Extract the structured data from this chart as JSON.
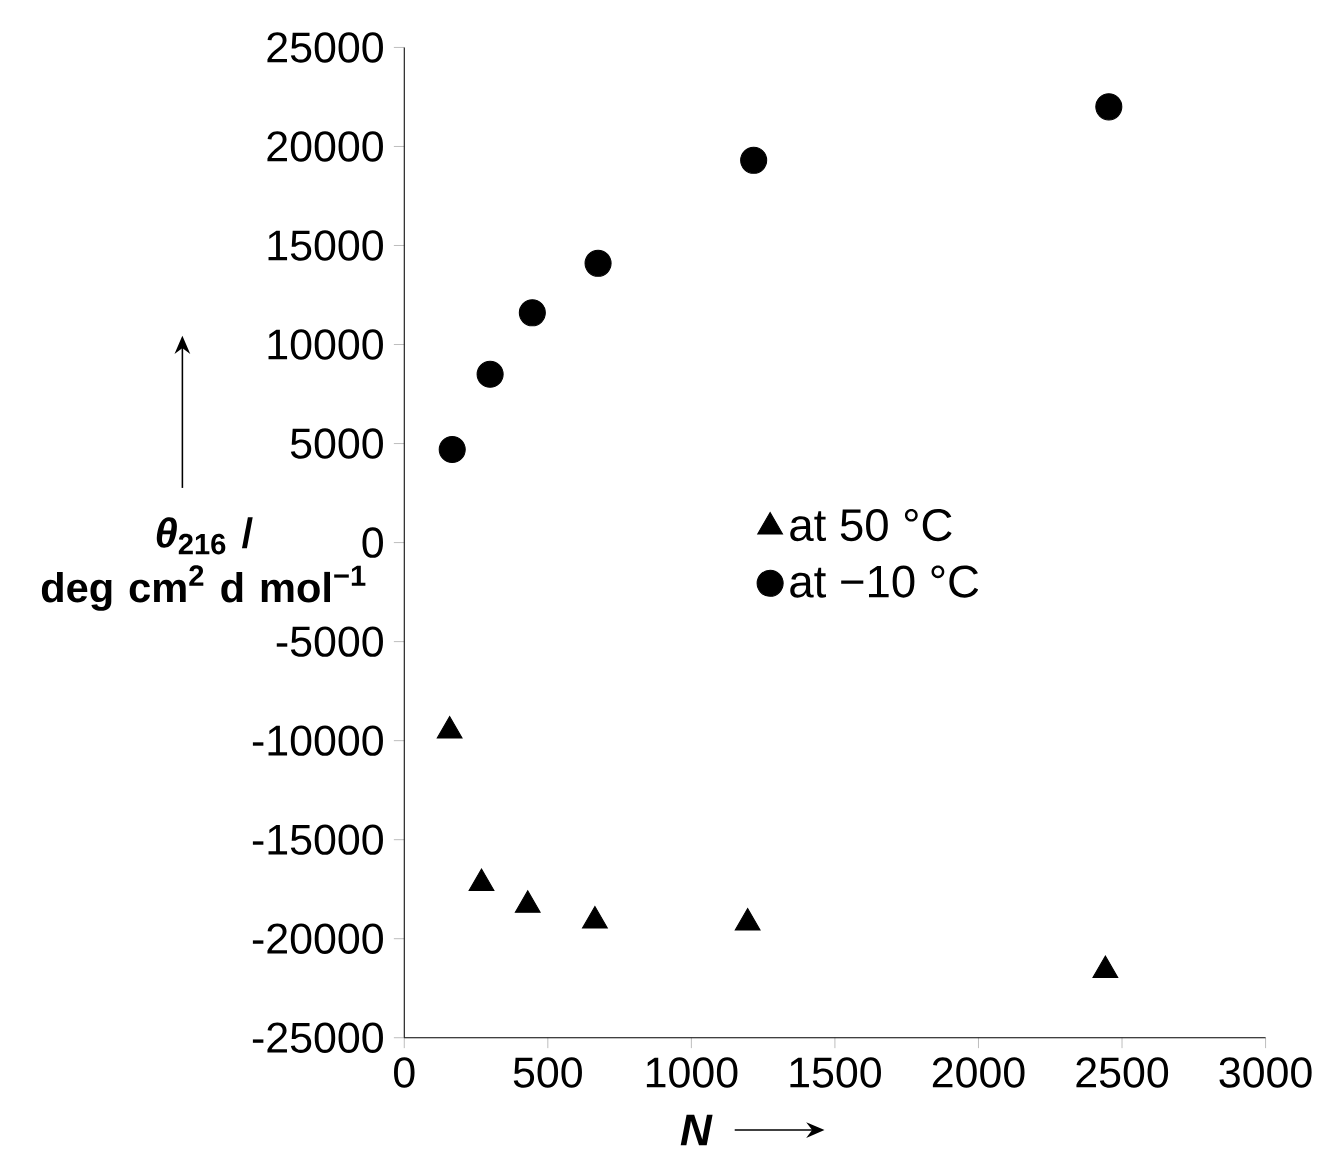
{
  "chart_data": {
    "type": "scatter",
    "xlabel": "N",
    "ylabel": "*θ*$_{216}$ / deg cm$^{2}$ d mol$^{−1}$",
    "xlim": [
      0,
      3000
    ],
    "xticks": [
      0,
      500,
      1000,
      1500,
      2000,
      2500,
      3000
    ],
    "ylim": [
      -25000,
      25000
    ],
    "yticks": [
      -25000,
      -20000,
      -15000,
      -10000,
      -5000,
      0,
      5000,
      10000,
      15000,
      20000,
      25000
    ],
    "legend": "center",
    "grid": false,
    "series": [
      {
        "name": "at 50 °C",
        "color": "#000000",
        "marker": "triangle",
        "x": [
          158,
          269,
          430,
          664,
          1196,
          2442
        ],
        "values": [
          -9500,
          -17200,
          -18300,
          -19100,
          -19200,
          -21600
        ]
      },
      {
        "name": "at −10 °C",
        "color": "#000000",
        "marker": "circle",
        "x": [
          167,
          299,
          446,
          675,
          1217,
          2454
        ],
        "values": [
          4700,
          8500,
          11600,
          14100,
          19300,
          22000
        ]
      }
    ]
  }
}
